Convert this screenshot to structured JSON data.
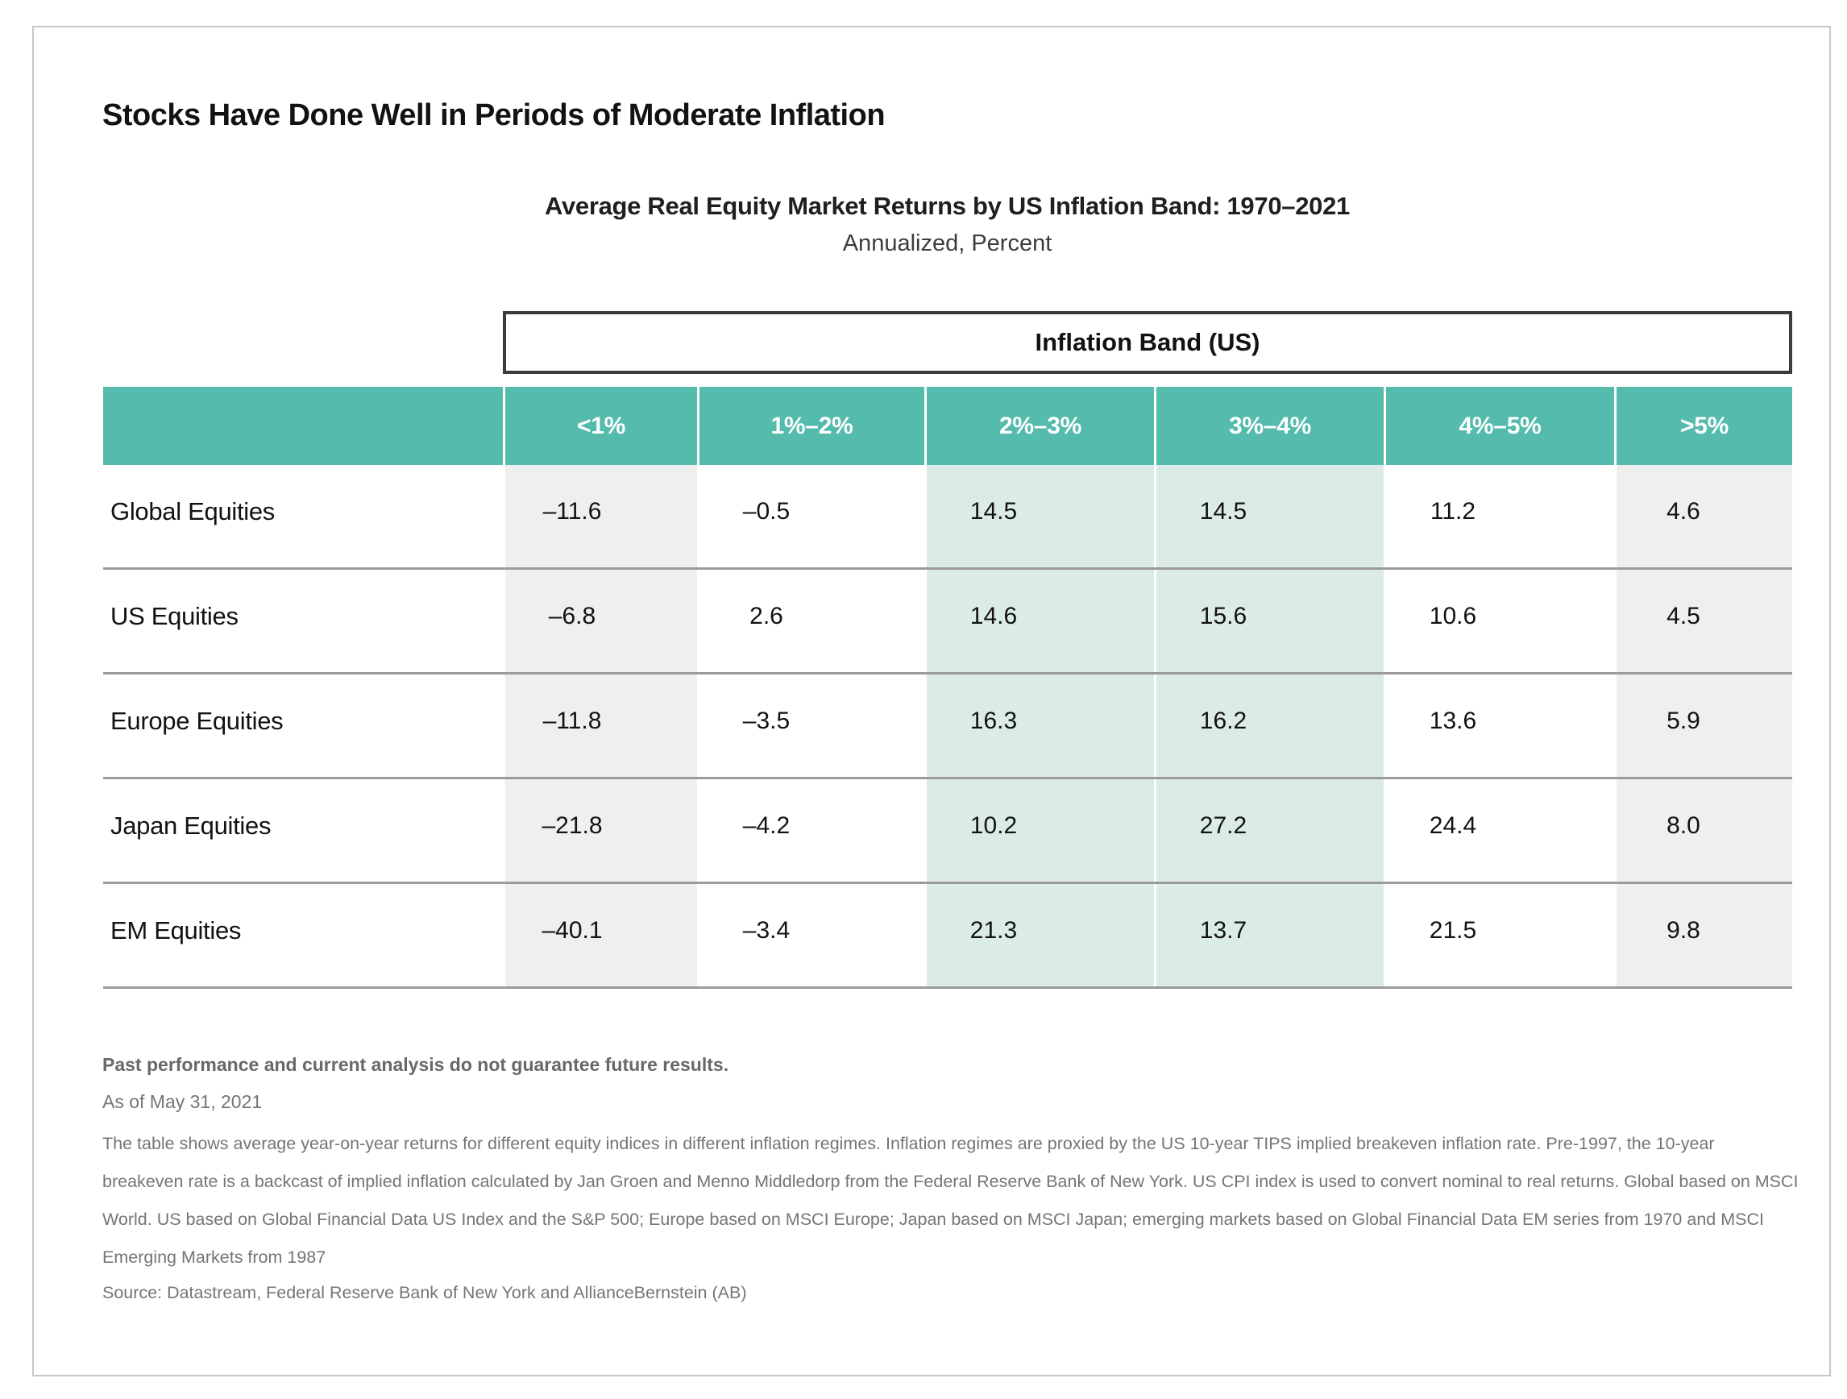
{
  "page": {
    "title": "Stocks Have Done Well in Periods of Moderate Inflation"
  },
  "chart_data": {
    "type": "table",
    "title": "Average Real Equity Market Returns by US Inflation Band: 1970–2021",
    "subtitle": "Annualized, Percent",
    "column_group_label": "Inflation Band (US)",
    "columns": [
      "<1%",
      "1%–2%",
      "2%–3%",
      "3%–4%",
      "4%–5%",
      ">5%"
    ],
    "rows": [
      {
        "label": "Global Equities",
        "values": [
          "–11.6",
          "–0.5",
          "14.5",
          "14.5",
          "11.2",
          "4.6"
        ]
      },
      {
        "label": "US Equities",
        "values": [
          "–6.8",
          "2.6",
          "14.6",
          "15.6",
          "10.6",
          "4.5"
        ]
      },
      {
        "label": "Europe Equities",
        "values": [
          "–11.8",
          "–3.5",
          "16.3",
          "16.2",
          "13.6",
          "5.9"
        ]
      },
      {
        "label": "Japan Equities",
        "values": [
          "–21.8",
          "–4.2",
          "10.2",
          "27.2",
          "24.4",
          "8.0"
        ]
      },
      {
        "label": "EM Equities",
        "values": [
          "–40.1",
          "–3.4",
          "21.3",
          "13.7",
          "21.5",
          "9.8"
        ]
      }
    ],
    "highlighted_columns": [
      "2%–3%",
      "3%–4%"
    ],
    "shaded_columns": [
      "<1%",
      ">5%"
    ],
    "layout": {
      "grid": "row separators only",
      "header_fill": "teal",
      "units": "percent"
    }
  },
  "colors": {
    "header_teal": "#54bbad",
    "highlight_teal": "#dbece8",
    "shade_gray": "#efefef",
    "row_separator": "#9b9b9b",
    "band_box_border": "#3b3b3b",
    "footnote_gray": "#757575"
  },
  "footer": {
    "disclaimer": "Past performance and current analysis do not guarantee future results.",
    "as_of": "As of May 31, 2021",
    "note": "The table shows average year-on-year returns for different equity indices in different inflation regimes. Inflation regimes are proxied by the US 10-year TIPS implied breakeven inflation rate. Pre-1997, the 10-year breakeven rate is a backcast of implied inflation calculated by Jan Groen and Menno Middledorp from the Federal Reserve Bank of New York. US CPI index is used to convert nominal to real returns. Global based on MSCI World. US based on Global Financial Data US Index and the S&P 500; Europe based on MSCI Europe; Japan based on MSCI Japan; emerging markets based on Global Financial Data EM series from 1970 and MSCI Emerging Markets from 1987",
    "source": "Source: Datastream, Federal Reserve Bank of New York and  AllianceBernstein (AB)"
  }
}
